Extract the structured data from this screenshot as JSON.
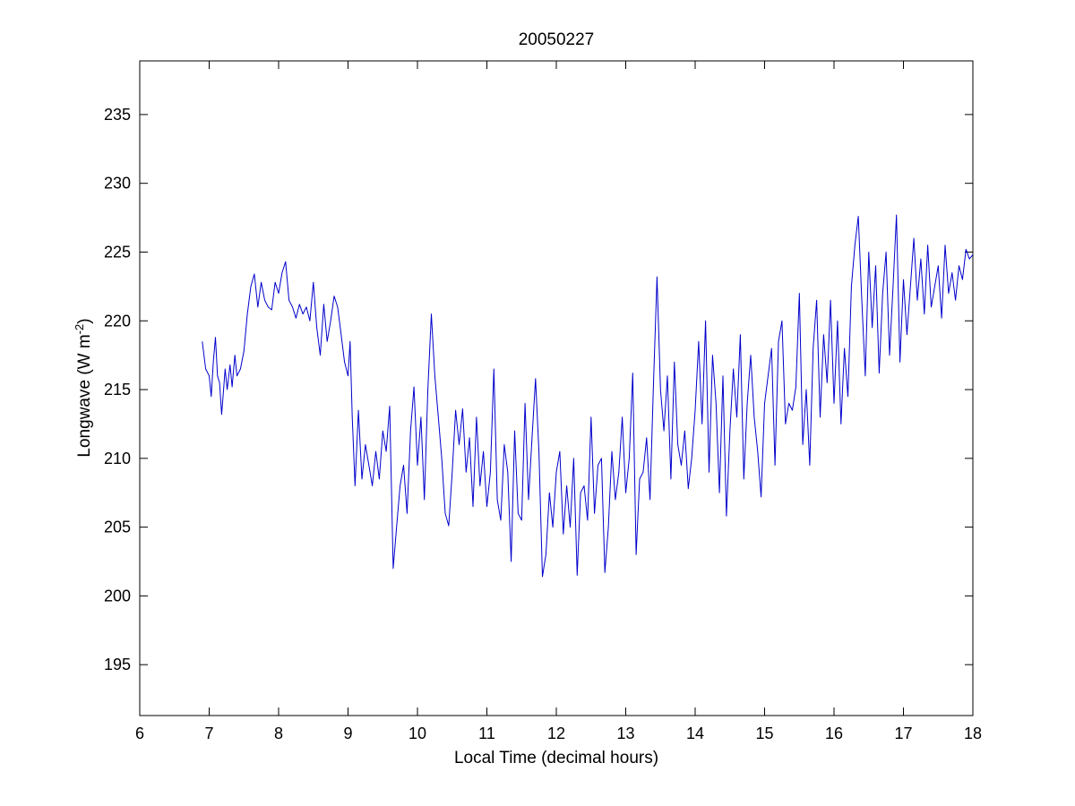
{
  "chart_data": {
    "type": "line",
    "title": "20050227",
    "xlabel": "Local Time (decimal hours)",
    "ylabel": {
      "prefix": "Longwave (W m",
      "superscript": "-2",
      "suffix": ")"
    },
    "xlim": [
      6,
      18
    ],
    "ylim": [
      191.3,
      238.9
    ],
    "x_ticks": [
      "6",
      "7",
      "8",
      "9",
      "10",
      "11",
      "12",
      "13",
      "14",
      "15",
      "16",
      "17",
      "18"
    ],
    "y_ticks": [
      "195",
      "200",
      "205",
      "210",
      "215",
      "220",
      "225",
      "230",
      "235"
    ],
    "grid": false,
    "series": [
      {
        "color": "#0000cc",
        "x": [
          6.9,
          6.95,
          7.0,
          7.03,
          7.06,
          7.09,
          7.12,
          7.15,
          7.18,
          7.2,
          7.23,
          7.26,
          7.3,
          7.33,
          7.37,
          7.4,
          7.45,
          7.5,
          7.55,
          7.6,
          7.65,
          7.7,
          7.75,
          7.8,
          7.85,
          7.9,
          7.95,
          8.0,
          8.05,
          8.1,
          8.15,
          8.2,
          8.25,
          8.3,
          8.35,
          8.4,
          8.45,
          8.5,
          8.55,
          8.6,
          8.65,
          8.7,
          8.75,
          8.8,
          8.85,
          8.9,
          8.95,
          9.0,
          9.03,
          9.06,
          9.1,
          9.15,
          9.2,
          9.25,
          9.3,
          9.35,
          9.4,
          9.45,
          9.5,
          9.55,
          9.6,
          9.65,
          9.7,
          9.75,
          9.8,
          9.85,
          9.9,
          9.95,
          10.0,
          10.05,
          10.1,
          10.15,
          10.2,
          10.25,
          10.3,
          10.35,
          10.4,
          10.45,
          10.5,
          10.55,
          10.6,
          10.65,
          10.7,
          10.75,
          10.8,
          10.85,
          10.9,
          10.95,
          11.0,
          11.05,
          11.1,
          11.15,
          11.2,
          11.25,
          11.3,
          11.35,
          11.4,
          11.45,
          11.5,
          11.55,
          11.6,
          11.65,
          11.7,
          11.75,
          11.8,
          11.85,
          11.9,
          11.95,
          12.0,
          12.05,
          12.1,
          12.15,
          12.2,
          12.25,
          12.3,
          12.35,
          12.4,
          12.45,
          12.5,
          12.55,
          12.6,
          12.65,
          12.7,
          12.75,
          12.8,
          12.85,
          12.9,
          12.95,
          13.0,
          13.05,
          13.1,
          13.15,
          13.2,
          13.25,
          13.3,
          13.35,
          13.4,
          13.45,
          13.5,
          13.55,
          13.6,
          13.65,
          13.7,
          13.75,
          13.8,
          13.85,
          13.9,
          13.95,
          14.0,
          14.05,
          14.1,
          14.15,
          14.2,
          14.25,
          14.3,
          14.35,
          14.4,
          14.45,
          14.5,
          14.55,
          14.6,
          14.65,
          14.7,
          14.75,
          14.8,
          14.85,
          14.9,
          14.95,
          15.0,
          15.05,
          15.1,
          15.15,
          15.2,
          15.25,
          15.3,
          15.35,
          15.4,
          15.45,
          15.5,
          15.55,
          15.6,
          15.65,
          15.7,
          15.75,
          15.8,
          15.85,
          15.9,
          15.95,
          16.0,
          16.05,
          16.1,
          16.15,
          16.2,
          16.25,
          16.3,
          16.35,
          16.4,
          16.45,
          16.5,
          16.55,
          16.6,
          16.65,
          16.7,
          16.75,
          16.8,
          16.85,
          16.9,
          16.95,
          17.0,
          17.05,
          17.1,
          17.15,
          17.2,
          17.25,
          17.3,
          17.35,
          17.4,
          17.45,
          17.5,
          17.55,
          17.6,
          17.65,
          17.7,
          17.75,
          17.8,
          17.85,
          17.9,
          17.95,
          18.0
        ],
        "y": [
          218.5,
          216.5,
          216.0,
          214.5,
          217.0,
          218.8,
          216.0,
          215.5,
          213.2,
          214.5,
          216.5,
          215.0,
          216.8,
          215.2,
          217.5,
          216.0,
          216.5,
          217.8,
          220.5,
          222.5,
          223.4,
          221.0,
          222.8,
          221.5,
          221.0,
          220.8,
          222.8,
          222.0,
          223.5,
          224.3,
          221.5,
          221.0,
          220.2,
          221.2,
          220.5,
          221.0,
          220.0,
          222.8,
          219.5,
          217.5,
          221.2,
          218.5,
          220.0,
          221.8,
          221.0,
          219.0,
          217.0,
          216.0,
          218.5,
          213.0,
          208.0,
          213.5,
          208.5,
          211.0,
          209.5,
          208.0,
          210.5,
          208.5,
          212.0,
          210.5,
          213.8,
          202.0,
          205.0,
          208.0,
          209.5,
          206.0,
          212.0,
          215.2,
          209.5,
          213.0,
          207.0,
          215.0,
          220.5,
          216.0,
          213.0,
          210.0,
          206.0,
          205.1,
          209.0,
          213.5,
          211.0,
          213.6,
          209.0,
          211.5,
          206.5,
          213.0,
          208.0,
          210.5,
          206.5,
          209.0,
          216.5,
          207.0,
          205.5,
          211.0,
          209.0,
          202.5,
          212.0,
          206.0,
          205.5,
          214.0,
          207.0,
          211.5,
          215.8,
          210.5,
          201.4,
          203.0,
          207.5,
          205.0,
          209.0,
          210.5,
          204.5,
          208.0,
          205.0,
          210.0,
          201.5,
          207.5,
          208.0,
          205.5,
          213.0,
          206.0,
          209.5,
          210.0,
          201.7,
          205.0,
          210.5,
          207.0,
          209.0,
          213.0,
          207.5,
          210.0,
          216.2,
          203.0,
          208.5,
          209.0,
          211.5,
          207.0,
          215.5,
          223.2,
          215.0,
          212.0,
          216.0,
          208.5,
          217.0,
          211.0,
          209.5,
          212.0,
          207.8,
          210.0,
          213.5,
          218.5,
          212.5,
          220.0,
          209.0,
          217.5,
          214.0,
          207.5,
          216.0,
          205.8,
          212.0,
          216.5,
          213.0,
          219.0,
          208.5,
          214.0,
          217.5,
          213.0,
          210.5,
          207.2,
          214.0,
          216.0,
          218.0,
          209.5,
          218.5,
          220.0,
          212.5,
          214.0,
          213.5,
          215.2,
          222.0,
          211.0,
          215.0,
          209.5,
          218.0,
          221.5,
          213.0,
          219.0,
          215.5,
          221.5,
          214.0,
          220.0,
          212.5,
          218.0,
          214.5,
          222.5,
          225.5,
          227.6,
          221.5,
          216.0,
          225.0,
          219.5,
          224.0,
          216.2,
          222.0,
          225.0,
          217.5,
          222.5,
          227.7,
          217.0,
          223.0,
          219.0,
          222.5,
          226.0,
          221.5,
          224.5,
          220.5,
          225.5,
          221.0,
          222.5,
          224.0,
          220.2,
          225.5,
          222.0,
          223.5,
          221.5,
          224.0,
          223.0,
          225.2,
          224.5,
          224.8
        ]
      }
    ]
  }
}
